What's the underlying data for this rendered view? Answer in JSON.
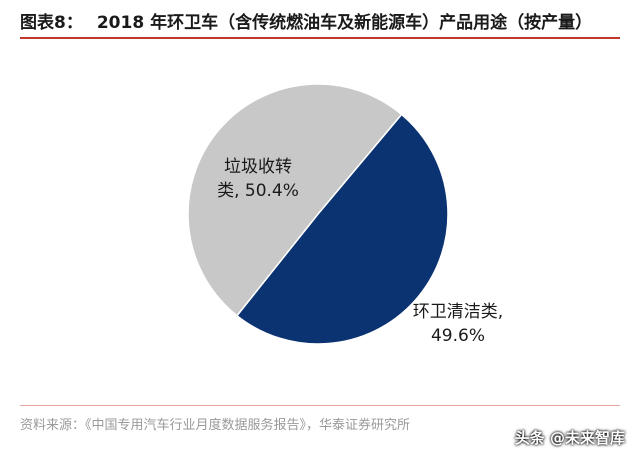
{
  "header": {
    "figure_label": "图表8：",
    "title": "2018 年环卫车（含传统燃油车及新能源车）产品用途（按产量）"
  },
  "chart_data": {
    "type": "pie",
    "slices": [
      {
        "name": "环卫清洁类",
        "label_line1": "环卫清洁类,",
        "label_line2": "49.6%",
        "value": 49.6,
        "color": "#0b3372"
      },
      {
        "name": "垃圾收转类",
        "label_line1": "垃圾收转",
        "label_line2": "类, 50.4%",
        "value": 50.4,
        "color": "#c8c8c8"
      }
    ]
  },
  "footer": {
    "source": "资料来源：《中国专用汽车行业月度数据服务报告》，华泰证券研究所"
  },
  "watermark": "头条 @未来智库"
}
